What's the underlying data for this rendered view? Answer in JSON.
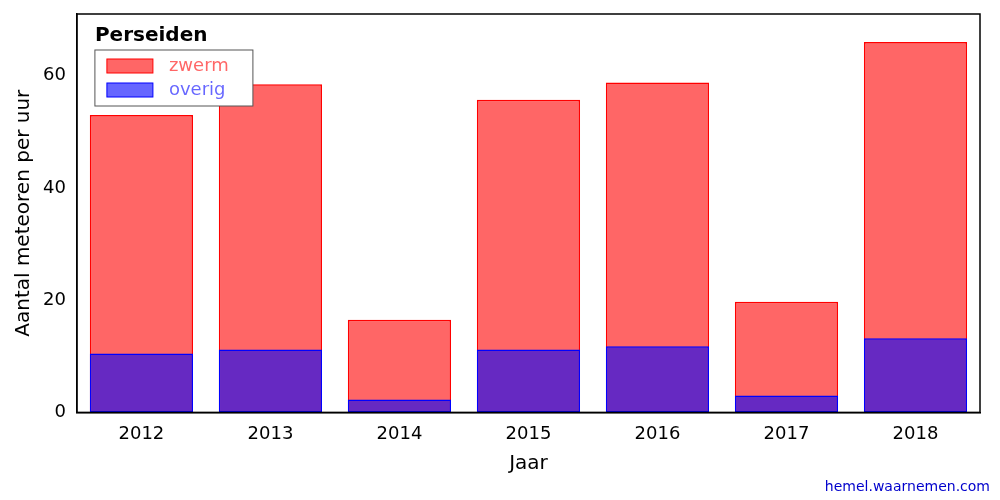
{
  "chart_data": {
    "type": "bar",
    "title": "Perseiden",
    "x_label": "Jaar",
    "y_label": "Aantal meteoren per uur",
    "annotation": "hemel.waarnemen.com",
    "categories": [
      "2012",
      "2013",
      "2014",
      "2015",
      "2016",
      "2017",
      "2018"
    ],
    "series": [
      {
        "name": "zwerm",
        "color": "#ff0000",
        "values": [
          53,
          58.5,
          16.5,
          55.7,
          58.8,
          19.7,
          66
        ]
      },
      {
        "name": "overig",
        "color": "#0000ff",
        "values": [
          10.5,
          11.2,
          2.3,
          11.2,
          11.8,
          3.0,
          13.2
        ]
      }
    ],
    "ylim": [
      0,
      71
    ],
    "yticks": [
      0,
      20,
      40,
      60
    ],
    "grid": false,
    "legend": "upper left",
    "stacked": false
  }
}
